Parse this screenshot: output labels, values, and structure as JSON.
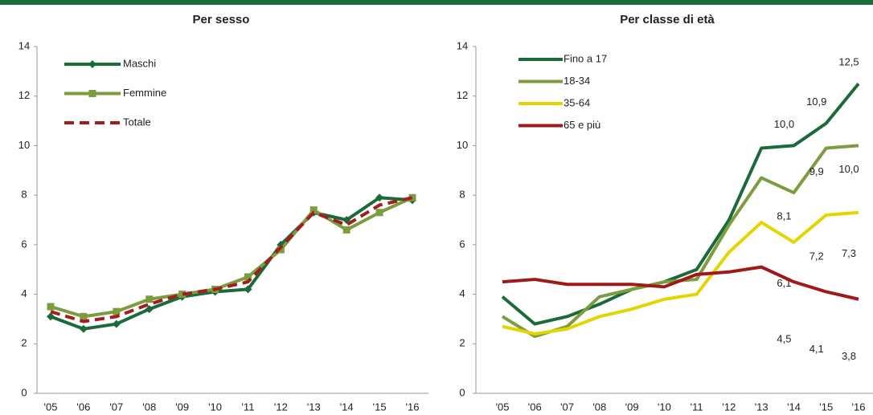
{
  "chart_data": [
    {
      "type": "line",
      "title": "Per sesso",
      "categories": [
        "'05",
        "'06",
        "'07",
        "'08",
        "'09",
        "'10",
        "'11",
        "'12",
        "'13",
        "'14",
        "'15",
        "'16"
      ],
      "ylim": [
        0,
        14
      ],
      "yticks": [
        0,
        2,
        4,
        6,
        8,
        10,
        12,
        14
      ],
      "legend": "upper left",
      "series": [
        {
          "name": "Maschi",
          "color": "#1b6b3a",
          "marker": "diamond",
          "values": [
            3.1,
            2.6,
            2.8,
            3.4,
            3.9,
            4.1,
            4.2,
            6.0,
            7.3,
            7.0,
            7.9,
            7.8
          ]
        },
        {
          "name": "Femmine",
          "color": "#7d9c3f",
          "marker": "square",
          "values": [
            3.5,
            3.1,
            3.3,
            3.8,
            4.0,
            4.2,
            4.7,
            5.8,
            7.4,
            6.6,
            7.3,
            7.9
          ]
        },
        {
          "name": "Totale",
          "color": "#a51c1c",
          "dashed": true,
          "values": [
            3.3,
            2.9,
            3.1,
            3.6,
            4.0,
            4.2,
            4.5,
            5.9,
            7.3,
            6.8,
            7.6,
            7.9
          ]
        }
      ]
    },
    {
      "type": "line",
      "title": "Per classe di età",
      "categories": [
        "'05",
        "'06",
        "'07",
        "'08",
        "'09",
        "'10",
        "'11",
        "'12",
        "'13",
        "'14",
        "'15",
        "'16"
      ],
      "ylim": [
        0,
        14
      ],
      "yticks": [
        0,
        2,
        4,
        6,
        8,
        10,
        12,
        14
      ],
      "legend": "upper left",
      "series": [
        {
          "name": "Fino a 17",
          "color": "#1b6b3a",
          "values": [
            3.9,
            2.8,
            3.1,
            3.6,
            4.2,
            4.5,
            5.0,
            7.0,
            9.9,
            10.0,
            10.9,
            12.5
          ],
          "value_labels": [
            null,
            null,
            null,
            null,
            null,
            null,
            null,
            null,
            null,
            "10,0",
            "10,9",
            "12,5"
          ]
        },
        {
          "name": "18-34",
          "color": "#7d9c3f",
          "values": [
            3.1,
            2.3,
            2.7,
            3.9,
            4.2,
            4.5,
            4.6,
            6.8,
            8.7,
            8.1,
            9.9,
            10.0
          ],
          "value_labels": [
            null,
            null,
            null,
            null,
            null,
            null,
            null,
            null,
            null,
            "8,1",
            "9,9",
            "10,0"
          ]
        },
        {
          "name": "35-64",
          "color": "#e3d600",
          "values": [
            2.7,
            2.4,
            2.6,
            3.1,
            3.4,
            3.8,
            4.0,
            5.7,
            6.9,
            6.1,
            7.2,
            7.3
          ],
          "value_labels": [
            null,
            null,
            null,
            null,
            null,
            null,
            null,
            null,
            null,
            "6,1",
            "7,2",
            "7,3"
          ]
        },
        {
          "name": "65 e più",
          "color": "#a01818",
          "values": [
            4.5,
            4.6,
            4.4,
            4.4,
            4.4,
            4.3,
            4.8,
            4.9,
            5.1,
            4.5,
            4.1,
            3.8
          ],
          "value_labels": [
            null,
            null,
            null,
            null,
            null,
            null,
            null,
            null,
            null,
            "4,5",
            "4,1",
            "3,8"
          ]
        }
      ]
    }
  ]
}
